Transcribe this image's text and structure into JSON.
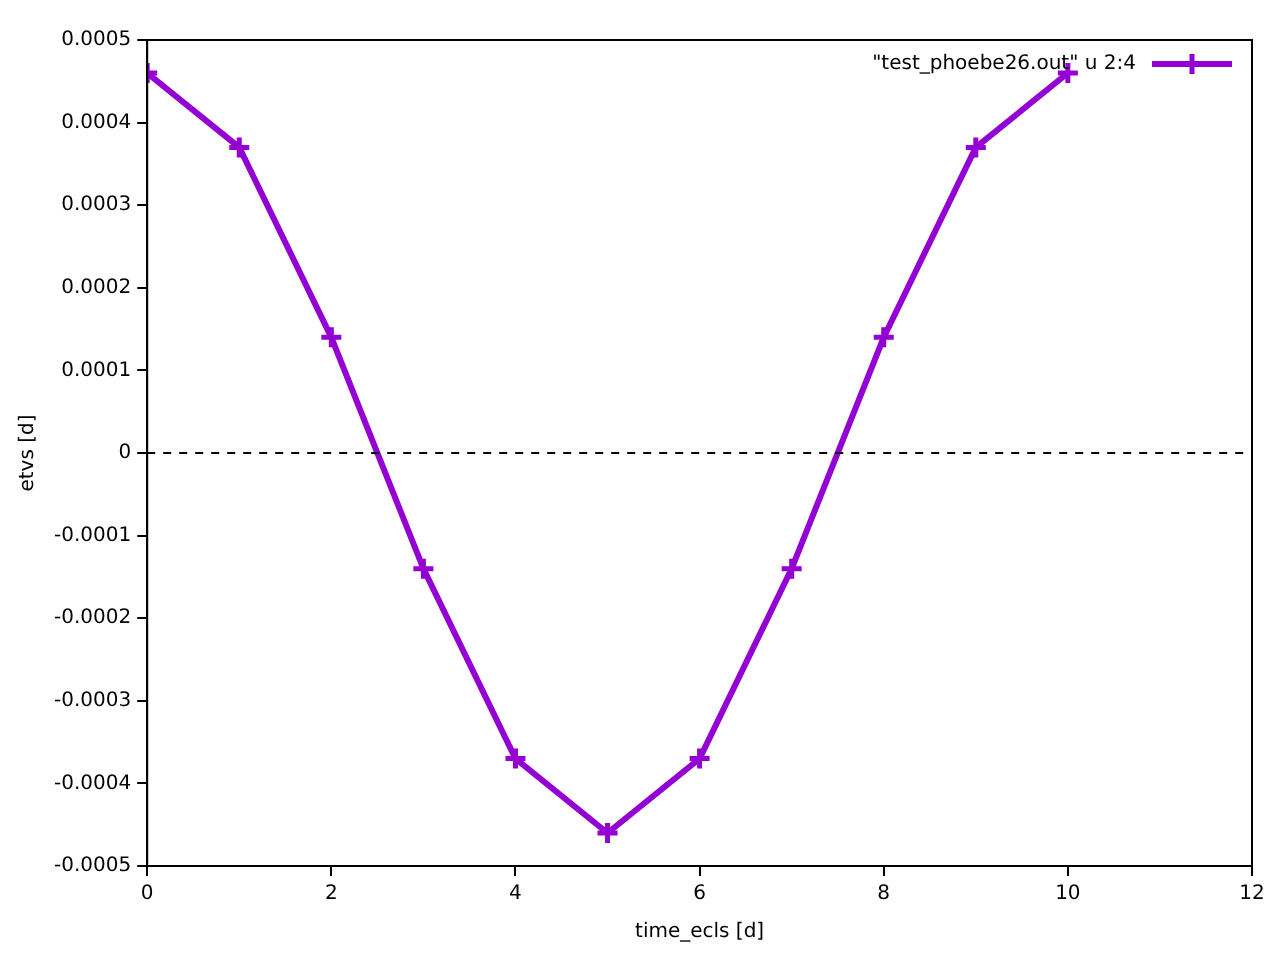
{
  "chart_data": {
    "type": "line",
    "xlabel": "time_ecls [d]",
    "ylabel": "etvs [d]",
    "x": [
      0,
      1,
      2,
      3,
      4,
      5,
      6,
      7,
      8,
      9,
      10
    ],
    "series": [
      {
        "name": "\"test_phoebe26.out\" u 2:4",
        "color": "#9400d3",
        "values": [
          0.00046,
          0.00037,
          0.00014,
          -0.00014,
          -0.00037,
          -0.00046,
          -0.00037,
          -0.00014,
          0.00014,
          0.00037,
          0.00046
        ]
      }
    ],
    "xlim": [
      0,
      12
    ],
    "xticks": [
      0,
      2,
      4,
      6,
      8,
      10,
      12
    ],
    "ylim": [
      -0.0005,
      0.0005
    ],
    "yticks": [
      -0.0005,
      -0.0004,
      -0.0003,
      -0.0002,
      -0.0001,
      0,
      0.0001,
      0.0002,
      0.0003,
      0.0004,
      0.0005
    ],
    "ref_lines": [
      {
        "axis": "y",
        "value": 0,
        "color": "#000000",
        "line_style": "dashed"
      }
    ],
    "grid": false,
    "legend": "top right",
    "marker": "cross",
    "line_style": "solid"
  }
}
